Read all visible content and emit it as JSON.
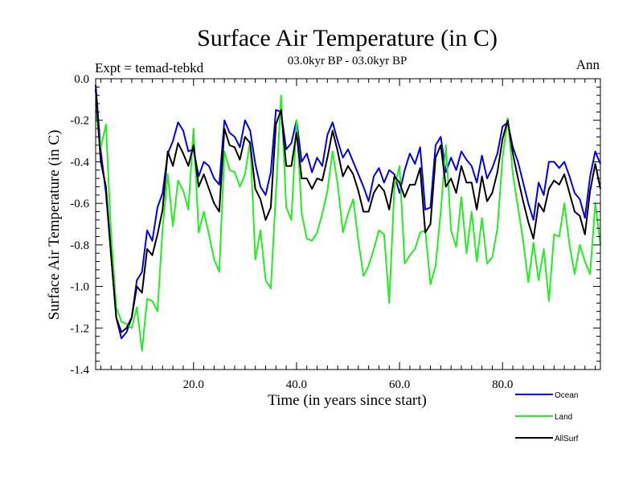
{
  "chart_data": {
    "type": "line",
    "title": "Surface Air Temperature (in C)",
    "subtitle": "03.0kyr BP - 03.0kyr BP",
    "left_label": "Expt = temad-tebkd",
    "right_label": "Ann",
    "xlabel": "Time (in years since start)",
    "ylabel": "Surface Air Temperature (in C)",
    "xlim": [
      1,
      99
    ],
    "ylim": [
      -1.4,
      0.0
    ],
    "xticks": [
      20,
      40,
      60,
      80
    ],
    "xtick_labels": [
      "20.0",
      "40.0",
      "60.0",
      "80.0"
    ],
    "yticks": [
      0.0,
      -0.2,
      -0.4,
      -0.6,
      -0.8,
      -1.0,
      -1.2,
      -1.4
    ],
    "ytick_labels": [
      "0.0",
      "-0.2",
      "-0.4",
      "-0.6",
      "-0.8",
      "-1.0",
      "-1.2",
      "-1.4"
    ],
    "x": [
      1,
      2,
      3,
      4,
      5,
      6,
      7,
      8,
      9,
      10,
      11,
      12,
      13,
      14,
      15,
      16,
      17,
      18,
      19,
      20,
      21,
      22,
      23,
      24,
      25,
      26,
      27,
      28,
      29,
      30,
      31,
      32,
      33,
      34,
      35,
      36,
      37,
      38,
      39,
      40,
      41,
      42,
      43,
      44,
      45,
      46,
      47,
      48,
      49,
      50,
      51,
      52,
      53,
      54,
      55,
      56,
      57,
      58,
      59,
      60,
      61,
      62,
      63,
      64,
      65,
      66,
      67,
      68,
      69,
      70,
      71,
      72,
      73,
      74,
      75,
      76,
      77,
      78,
      79,
      80,
      81,
      82,
      83,
      84,
      85,
      86,
      87,
      88,
      89,
      90,
      91,
      92,
      93,
      94,
      95,
      96,
      97,
      98,
      99
    ],
    "series": [
      {
        "name": "Ocean",
        "color": "#0000ee",
        "values": [
          -0.03,
          -0.35,
          -0.55,
          -0.85,
          -1.15,
          -1.25,
          -1.22,
          -1.15,
          -0.97,
          -0.93,
          -0.73,
          -0.78,
          -0.62,
          -0.55,
          -0.36,
          -0.3,
          -0.21,
          -0.25,
          -0.35,
          -0.34,
          -0.47,
          -0.4,
          -0.42,
          -0.48,
          -0.51,
          -0.2,
          -0.26,
          -0.28,
          -0.33,
          -0.2,
          -0.25,
          -0.41,
          -0.52,
          -0.56,
          -0.45,
          -0.15,
          -0.16,
          -0.34,
          -0.31,
          -0.2,
          -0.4,
          -0.36,
          -0.45,
          -0.38,
          -0.42,
          -0.27,
          -0.21,
          -0.3,
          -0.38,
          -0.34,
          -0.4,
          -0.46,
          -0.52,
          -0.59,
          -0.47,
          -0.43,
          -0.5,
          -0.44,
          -0.46,
          -0.55,
          -0.44,
          -0.36,
          -0.41,
          -0.33,
          -0.63,
          -0.62,
          -0.32,
          -0.28,
          -0.45,
          -0.38,
          -0.44,
          -0.35,
          -0.39,
          -0.42,
          -0.5,
          -0.37,
          -0.48,
          -0.43,
          -0.36,
          -0.23,
          -0.21,
          -0.33,
          -0.4,
          -0.5,
          -0.6,
          -0.68,
          -0.5,
          -0.56,
          -0.4,
          -0.4,
          -0.43,
          -0.4,
          -0.47,
          -0.55,
          -0.58,
          -0.67,
          -0.47,
          -0.35,
          -0.41
        ]
      },
      {
        "name": "Land",
        "color": "#22ee22",
        "values": [
          -0.15,
          -0.33,
          -0.22,
          -0.75,
          -1.1,
          -1.17,
          -1.18,
          -1.2,
          -1.1,
          -1.31,
          -1.06,
          -1.07,
          -1.12,
          -0.72,
          -0.46,
          -0.71,
          -0.49,
          -0.54,
          -0.63,
          -0.24,
          -0.74,
          -0.64,
          -0.75,
          -0.87,
          -0.93,
          -0.35,
          -0.44,
          -0.45,
          -0.52,
          -0.46,
          -0.3,
          -0.87,
          -0.73,
          -0.97,
          -1.01,
          -0.55,
          -0.08,
          -0.62,
          -0.68,
          -0.2,
          -0.65,
          -0.77,
          -0.78,
          -0.74,
          -0.65,
          -0.54,
          -0.35,
          -0.51,
          -0.74,
          -0.65,
          -0.58,
          -0.78,
          -0.95,
          -0.9,
          -0.82,
          -0.73,
          -0.75,
          -1.08,
          -0.52,
          -0.42,
          -0.89,
          -0.85,
          -0.82,
          -0.74,
          -0.73,
          -0.99,
          -0.9,
          -0.64,
          -0.32,
          -0.73,
          -0.81,
          -0.57,
          -0.84,
          -0.64,
          -0.88,
          -0.67,
          -0.89,
          -0.86,
          -0.72,
          -0.38,
          -0.19,
          -0.46,
          -0.62,
          -0.78,
          -0.98,
          -0.79,
          -0.97,
          -0.82,
          -1.07,
          -0.75,
          -0.76,
          -0.6,
          -0.8,
          -0.94,
          -0.8,
          -0.88,
          -0.94,
          -0.6,
          -0.8
        ]
      },
      {
        "name": "AllSurf",
        "color": "#000000",
        "values": [
          -0.05,
          -0.4,
          -0.52,
          -0.85,
          -1.15,
          -1.22,
          -1.2,
          -1.15,
          -1.0,
          -1.03,
          -0.82,
          -0.85,
          -0.75,
          -0.63,
          -0.35,
          -0.42,
          -0.31,
          -0.36,
          -0.42,
          -0.32,
          -0.52,
          -0.46,
          -0.53,
          -0.6,
          -0.64,
          -0.24,
          -0.32,
          -0.33,
          -0.39,
          -0.28,
          -0.31,
          -0.53,
          -0.58,
          -0.68,
          -0.62,
          -0.22,
          -0.15,
          -0.42,
          -0.42,
          -0.26,
          -0.48,
          -0.48,
          -0.53,
          -0.48,
          -0.49,
          -0.38,
          -0.25,
          -0.35,
          -0.47,
          -0.42,
          -0.46,
          -0.54,
          -0.64,
          -0.64,
          -0.55,
          -0.51,
          -0.54,
          -0.63,
          -0.47,
          -0.5,
          -0.57,
          -0.51,
          -0.51,
          -0.43,
          -0.74,
          -0.7,
          -0.38,
          -0.32,
          -0.52,
          -0.48,
          -0.55,
          -0.42,
          -0.5,
          -0.5,
          -0.63,
          -0.47,
          -0.59,
          -0.55,
          -0.45,
          -0.29,
          -0.2,
          -0.36,
          -0.48,
          -0.59,
          -0.69,
          -0.77,
          -0.6,
          -0.64,
          -0.53,
          -0.49,
          -0.51,
          -0.46,
          -0.55,
          -0.64,
          -0.66,
          -0.75,
          -0.54,
          -0.41,
          -0.53
        ]
      }
    ],
    "legend": [
      "Ocean",
      "Land",
      "AllSurf"
    ],
    "legend_position": "bottom-right",
    "grid": false
  }
}
